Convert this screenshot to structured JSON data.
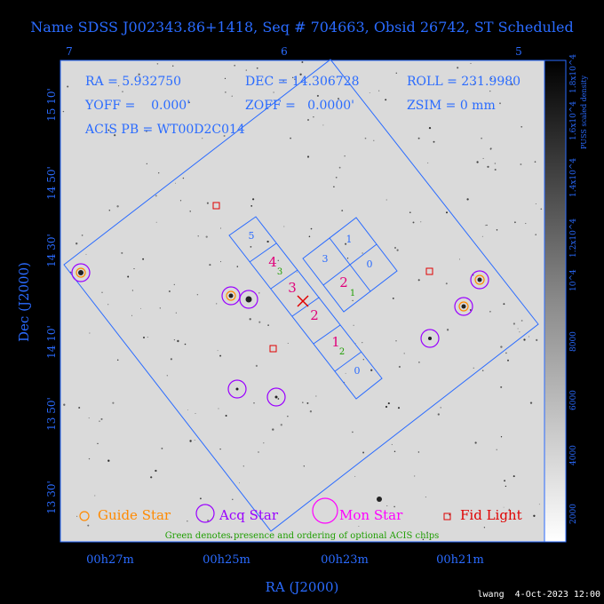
{
  "title": "Name SDSS J002343.86+1418, Seq # 704663, Obsid 26742, ST Scheduled",
  "info": {
    "ra": "RA = 5.932750",
    "dec": "DEC = 14.306728",
    "roll": "ROLL = 231.9980",
    "yoff": "YOFF =    0.000'",
    "zoff": "ZOFF =   0.0000'",
    "zsim": "ZSIM = 0 mm",
    "acis_pb": "ACIS PB = WT00D2C014"
  },
  "top_ticks": [
    "7",
    "6",
    "5"
  ],
  "dec_ticks": [
    "15 10'",
    "14 50'",
    "14 30'",
    "14 10'",
    "13 50'",
    "13 30'"
  ],
  "ra_ticks": [
    "00h27m",
    "00h25m",
    "00h23m",
    "00h21m"
  ],
  "xlabel": "RA (J2000)",
  "ylabel": "Dec (J2000)",
  "colorbar": {
    "label": "PUSS scaled density",
    "ticks": [
      "2000",
      "4000",
      "6000",
      "8000",
      "10^4",
      "1.2x10^4",
      "1.4x10^4",
      "1.6x10^4",
      "1.8x10^4"
    ]
  },
  "chips": {
    "i_chips": [
      "1",
      "0",
      "3",
      "2"
    ],
    "s_chips": [
      "5",
      "4",
      "3",
      "2",
      "1",
      "0"
    ],
    "green": [
      "3",
      "2",
      "1"
    ],
    "magenta": [
      "4",
      "3",
      "2",
      "1",
      "2"
    ]
  },
  "legend": {
    "guide": "Guide Star",
    "acq": "Acq Star",
    "mon": "Mon Star",
    "fid": "Fid Light"
  },
  "note": "Green denotes presence and ordering of optional ACIS chips",
  "footer": "lwang  4-Oct-2023 12:00",
  "colors": {
    "blue": "#2a6bff",
    "guide": "#ff8a00",
    "acq": "#9a00ff",
    "mon": "#ff00ff",
    "fid": "#e00000",
    "green": "#1e9e00"
  }
}
